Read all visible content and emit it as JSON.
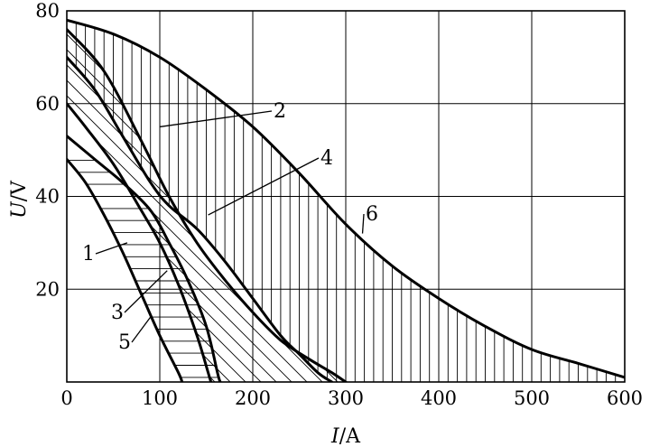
{
  "chart_data": {
    "type": "line",
    "xlabel": {
      "italic": "I",
      "rest": "/A"
    },
    "ylabel": {
      "italic": "U",
      "rest": "/V"
    },
    "xlim": [
      0,
      600
    ],
    "ylim": [
      0,
      80
    ],
    "x_ticks": [
      0,
      100,
      200,
      300,
      400,
      500,
      600
    ],
    "y_ticks": [
      20,
      40,
      60,
      80
    ],
    "grid": true,
    "line_color": "#000000",
    "series": [
      {
        "name": "1",
        "points": [
          [
            0,
            48
          ],
          [
            20,
            43
          ],
          [
            40,
            36
          ],
          [
            60,
            28
          ],
          [
            80,
            19
          ],
          [
            100,
            10
          ],
          [
            120,
            2
          ],
          [
            124,
            0
          ]
        ]
      },
      {
        "name": "2",
        "points": [
          [
            0,
            60
          ],
          [
            20,
            55
          ],
          [
            50,
            47
          ],
          [
            80,
            37
          ],
          [
            100,
            30
          ],
          [
            120,
            21
          ],
          [
            140,
            10
          ],
          [
            152,
            2
          ],
          [
            155,
            0
          ]
        ]
      },
      {
        "name": "3",
        "points": [
          [
            0,
            53
          ],
          [
            30,
            48
          ],
          [
            60,
            43
          ],
          [
            90,
            37
          ],
          [
            110,
            30
          ],
          [
            130,
            22
          ],
          [
            150,
            12
          ],
          [
            162,
            2
          ],
          [
            165,
            0
          ]
        ]
      },
      {
        "name": "4",
        "points": [
          [
            0,
            76
          ],
          [
            40,
            67
          ],
          [
            80,
            52
          ],
          [
            110,
            40
          ],
          [
            140,
            30
          ],
          [
            170,
            22
          ],
          [
            200,
            15
          ],
          [
            230,
            9
          ],
          [
            260,
            5
          ],
          [
            285,
            2
          ],
          [
            300,
            0
          ]
        ]
      },
      {
        "name": "5",
        "points": [
          [
            0,
            70
          ],
          [
            30,
            63
          ],
          [
            60,
            53
          ],
          [
            90,
            43
          ],
          [
            110,
            38
          ],
          [
            140,
            33
          ],
          [
            170,
            26
          ],
          [
            200,
            18
          ],
          [
            230,
            10
          ],
          [
            250,
            6
          ],
          [
            270,
            2
          ],
          [
            285,
            0
          ]
        ]
      },
      {
        "name": "6",
        "points": [
          [
            0,
            78
          ],
          [
            50,
            75
          ],
          [
            100,
            70
          ],
          [
            150,
            63
          ],
          [
            200,
            55
          ],
          [
            250,
            45
          ],
          [
            300,
            34
          ],
          [
            350,
            25
          ],
          [
            400,
            18
          ],
          [
            450,
            12
          ],
          [
            500,
            7
          ],
          [
            550,
            4
          ],
          [
            600,
            1
          ]
        ]
      }
    ],
    "regions": [
      {
        "between": [
          "1",
          "3"
        ],
        "hatch": "horizontal"
      },
      {
        "between": [
          "2",
          "4"
        ],
        "hatch": "diagonal"
      },
      {
        "between": [
          "5",
          "6"
        ],
        "hatch": "vertical"
      }
    ],
    "annotations": [
      {
        "text": "1",
        "target": [
          65,
          30
        ]
      },
      {
        "text": "2",
        "target": [
          100,
          55
        ]
      },
      {
        "text": "3",
        "target": [
          108,
          24
        ]
      },
      {
        "text": "4",
        "target": [
          152,
          36
        ]
      },
      {
        "text": "5",
        "target": [
          90,
          14
        ]
      },
      {
        "text": "6",
        "target": [
          318,
          32
        ]
      }
    ]
  }
}
